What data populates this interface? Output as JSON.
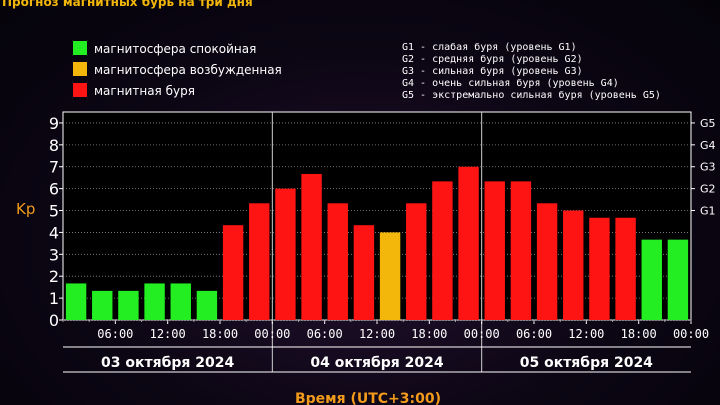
{
  "header": {
    "title": "Прогноз магнитных бурь на три дня"
  },
  "legend_left": [
    {
      "label": "магнитосфера спокойная",
      "color": "#22ee22"
    },
    {
      "label": "магнитосфера возбужденная",
      "color": "#f2b70a"
    },
    {
      "label": "магнитная буря",
      "color": "#ff1414"
    }
  ],
  "legend_right": [
    "G1 - слабая буря (уровень G1)",
    "G2 - средняя буря (уровень G2)",
    "G3 - сильная буря (уровень G3)",
    "G4 - очень сильная буря (уровень G4)",
    "G5 - экстремально сильная буря (уровень G5)"
  ],
  "chart_data": {
    "type": "bar",
    "ylabel": "Kp",
    "xlabel": "Время (UTC+3:00)",
    "ylim": [
      0,
      9.5
    ],
    "y_ticks": [
      0,
      1,
      2,
      3,
      4,
      5,
      6,
      7,
      8,
      9
    ],
    "right_ticks": [
      {
        "label": "G1",
        "value": 5
      },
      {
        "label": "G2",
        "value": 6
      },
      {
        "label": "G3",
        "value": 7
      },
      {
        "label": "G4",
        "value": 8
      },
      {
        "label": "G5",
        "value": 9
      }
    ],
    "x_tick_labels": [
      "06:00",
      "12:00",
      "18:00",
      "00:00",
      "06:00",
      "12:00",
      "18:00",
      "00:00",
      "06:00",
      "12:00",
      "18:00",
      "00:00"
    ],
    "days": [
      "03 октября 2024",
      "04 октября 2024",
      "05 октября 2024"
    ],
    "values": [
      1.67,
      1.33,
      1.33,
      1.67,
      1.67,
      1.33,
      4.33,
      5.33,
      6.0,
      6.67,
      5.33,
      4.33,
      4.0,
      5.33,
      6.33,
      7.0,
      6.33,
      6.33,
      5.33,
      5.0,
      4.67,
      4.67,
      3.67,
      3.67
    ],
    "levels": [
      "quiet",
      "quiet",
      "quiet",
      "quiet",
      "quiet",
      "quiet",
      "storm",
      "storm",
      "storm",
      "storm",
      "storm",
      "storm",
      "active",
      "storm",
      "storm",
      "storm",
      "storm",
      "storm",
      "storm",
      "storm",
      "storm",
      "storm",
      "quiet",
      "quiet"
    ],
    "colors": {
      "quiet": "#22ee22",
      "active": "#f2b70a",
      "storm": "#ff1414"
    },
    "grid": true
  }
}
